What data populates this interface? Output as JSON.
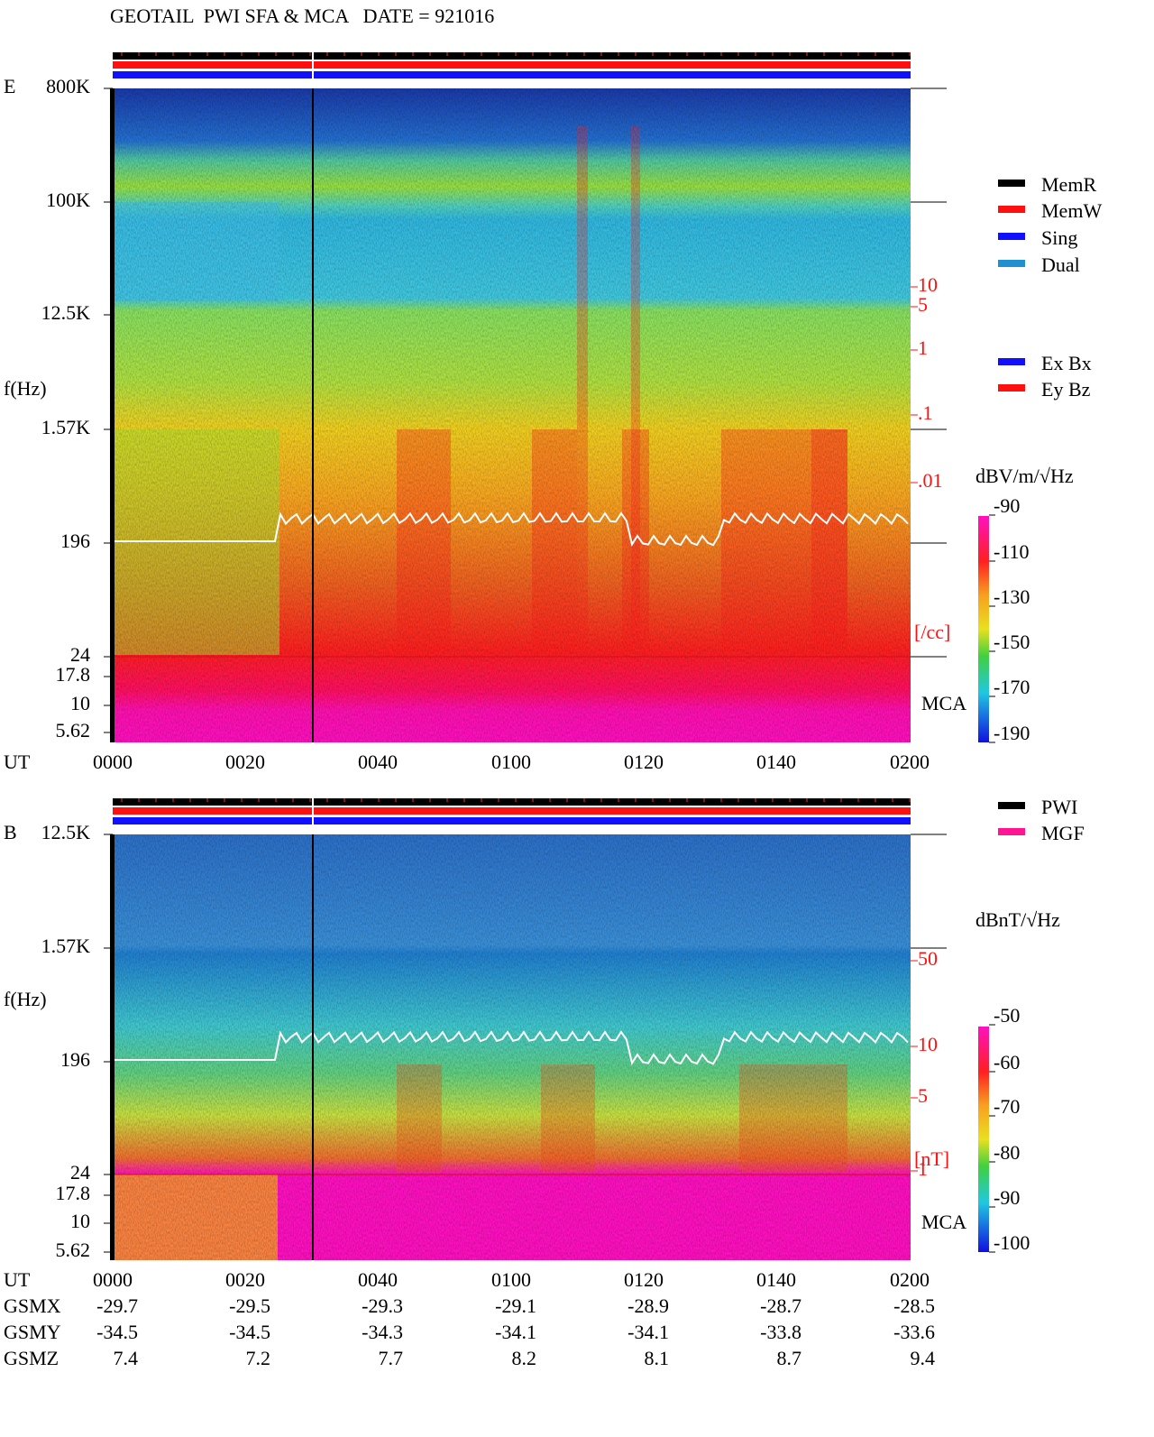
{
  "title": "GEOTAIL  PWI SFA & MCA   DATE = 921016",
  "panels": [
    {
      "label": "E",
      "freq_ticks": [
        "800K",
        "100K",
        "12.5K",
        "1.57K",
        "196",
        "24",
        "17.8",
        "10",
        "5.62"
      ],
      "freq_axis": "f(Hz)",
      "time_axis": "UT",
      "time_ticks": [
        "0000",
        "0020",
        "0040",
        "0100",
        "0120",
        "0140",
        "0200"
      ],
      "right_scale": [
        "10",
        "5",
        "1",
        ".1",
        ".01"
      ],
      "right_unit": "[/cc]",
      "mca": "MCA",
      "colorbar_title": "dBV/m/√Hz",
      "colorbar_ticks": [
        "-90",
        "-110",
        "-130",
        "-150",
        "-170",
        "-190"
      ]
    },
    {
      "label": "B",
      "freq_ticks": [
        "12.5K",
        "1.57K",
        "196",
        "24",
        "17.8",
        "10",
        "5.62"
      ],
      "freq_axis": "f(Hz)",
      "time_axis": "UT",
      "time_ticks": [
        "0000",
        "0020",
        "0040",
        "0100",
        "0120",
        "0140",
        "0200"
      ],
      "right_scale": [
        "50",
        "10",
        "5",
        "1"
      ],
      "right_unit": "[nT]",
      "mca": "MCA",
      "colorbar_title": "dBnT/√Hz",
      "colorbar_ticks": [
        "-50",
        "-60",
        "-70",
        "-80",
        "-90",
        "-100"
      ]
    }
  ],
  "legend_mode": [
    "MemR",
    "MemW",
    "Sing",
    "Dual"
  ],
  "legend_antenna": [
    "Ex Bx",
    "Ey Bz"
  ],
  "legend_source": [
    "PWI",
    "MGF"
  ],
  "orbit": [
    {
      "label": "GSMX",
      "values": [
        "-29.7",
        "-29.5",
        "-29.3",
        "-29.1",
        "-28.9",
        "-28.7",
        "-28.5"
      ]
    },
    {
      "label": "GSMY",
      "values": [
        "-34.5",
        "-34.5",
        "-34.3",
        "-34.1",
        "-34.1",
        "-33.8",
        "-33.6"
      ]
    },
    {
      "label": "GSMZ",
      "values": [
        "7.4",
        "7.2",
        "7.7",
        "8.2",
        "8.1",
        "8.7",
        "9.4"
      ]
    }
  ]
}
